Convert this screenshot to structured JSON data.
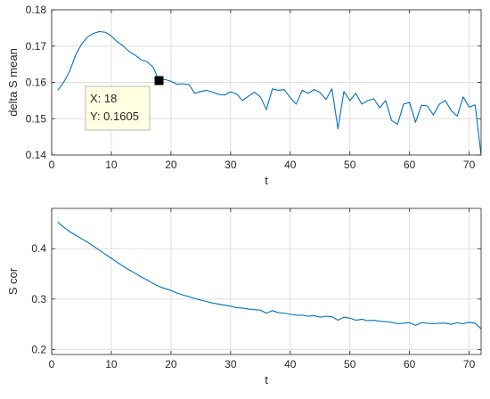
{
  "chart_data": [
    {
      "type": "line",
      "xlabel": "t",
      "ylabel": "delta S mean",
      "xlim": [
        0,
        72
      ],
      "ylim": [
        0.14,
        0.18
      ],
      "xticks": [
        0,
        10,
        20,
        30,
        40,
        50,
        60,
        70
      ],
      "yticks": [
        0.14,
        0.15,
        0.16,
        0.17,
        0.18
      ],
      "ytick_labels": [
        "0.14",
        "0.15",
        "0.16",
        "0.17",
        "0.18"
      ],
      "grid": true,
      "line_color": "#0072BD",
      "series": [
        {
          "x": [
            1,
            2,
            3,
            4,
            5,
            6,
            7,
            8,
            9,
            10,
            11,
            12,
            13,
            14,
            15,
            16,
            17,
            18,
            19,
            20,
            21,
            22,
            23,
            24,
            25,
            26,
            27,
            28,
            29,
            30,
            31,
            32,
            33,
            34,
            35,
            36,
            37,
            38,
            39,
            40,
            41,
            42,
            43,
            44,
            45,
            46,
            47,
            48,
            49,
            50,
            51,
            52,
            53,
            54,
            55,
            56,
            57,
            58,
            59,
            60,
            61,
            62,
            63,
            64,
            65,
            66,
            67,
            68,
            69,
            70,
            71,
            72
          ],
          "values": [
            0.1578,
            0.16,
            0.163,
            0.1675,
            0.1705,
            0.1725,
            0.1735,
            0.174,
            0.1738,
            0.1728,
            0.1712,
            0.17,
            0.1685,
            0.1675,
            0.1662,
            0.1657,
            0.1642,
            0.1605,
            0.1608,
            0.1603,
            0.1595,
            0.1596,
            0.1594,
            0.157,
            0.1575,
            0.1578,
            0.1573,
            0.1567,
            0.1565,
            0.1574,
            0.1568,
            0.155,
            0.1562,
            0.1573,
            0.156,
            0.1525,
            0.1582,
            0.1578,
            0.158,
            0.1558,
            0.154,
            0.1578,
            0.157,
            0.158,
            0.1572,
            0.1553,
            0.1582,
            0.1472,
            0.1575,
            0.155,
            0.157,
            0.154,
            0.155,
            0.1555,
            0.153,
            0.155,
            0.1495,
            0.1485,
            0.154,
            0.1545,
            0.149,
            0.1537,
            0.1535,
            0.151,
            0.154,
            0.155,
            0.1522,
            0.1507,
            0.156,
            0.1532,
            0.1538,
            0.14
          ]
        }
      ],
      "datatip": {
        "x": 18,
        "y": 0.1605,
        "x_text": "X: 18",
        "y_text": "Y: 0.1605"
      }
    },
    {
      "type": "line",
      "xlabel": "t",
      "ylabel": "S cor",
      "xlim": [
        0,
        72
      ],
      "ylim": [
        0.19,
        0.48
      ],
      "xticks": [
        0,
        10,
        20,
        30,
        40,
        50,
        60,
        70
      ],
      "yticks": [
        0.2,
        0.3,
        0.4
      ],
      "ytick_labels": [
        "0.2",
        "0.3",
        "0.4"
      ],
      "grid": true,
      "line_color": "#0072BD",
      "series": [
        {
          "x": [
            1,
            2,
            3,
            4,
            5,
            6,
            7,
            8,
            9,
            10,
            11,
            12,
            13,
            14,
            15,
            16,
            17,
            18,
            19,
            20,
            21,
            22,
            23,
            24,
            25,
            26,
            27,
            28,
            29,
            30,
            31,
            32,
            33,
            34,
            35,
            36,
            37,
            38,
            39,
            40,
            41,
            42,
            43,
            44,
            45,
            46,
            47,
            48,
            49,
            50,
            51,
            52,
            53,
            54,
            55,
            56,
            57,
            58,
            59,
            60,
            61,
            62,
            63,
            64,
            65,
            66,
            67,
            68,
            69,
            70,
            71,
            72
          ],
          "values": [
            0.453,
            0.443,
            0.434,
            0.427,
            0.42,
            0.413,
            0.405,
            0.397,
            0.389,
            0.381,
            0.373,
            0.365,
            0.358,
            0.351,
            0.344,
            0.338,
            0.331,
            0.325,
            0.321,
            0.317,
            0.312,
            0.308,
            0.305,
            0.301,
            0.298,
            0.295,
            0.292,
            0.29,
            0.288,
            0.286,
            0.283,
            0.282,
            0.28,
            0.279,
            0.278,
            0.272,
            0.277,
            0.273,
            0.272,
            0.27,
            0.268,
            0.268,
            0.266,
            0.267,
            0.264,
            0.266,
            0.265,
            0.258,
            0.264,
            0.262,
            0.258,
            0.26,
            0.257,
            0.258,
            0.256,
            0.255,
            0.254,
            0.251,
            0.252,
            0.253,
            0.248,
            0.253,
            0.252,
            0.251,
            0.252,
            0.252,
            0.25,
            0.253,
            0.251,
            0.254,
            0.252,
            0.241
          ]
        }
      ]
    }
  ]
}
